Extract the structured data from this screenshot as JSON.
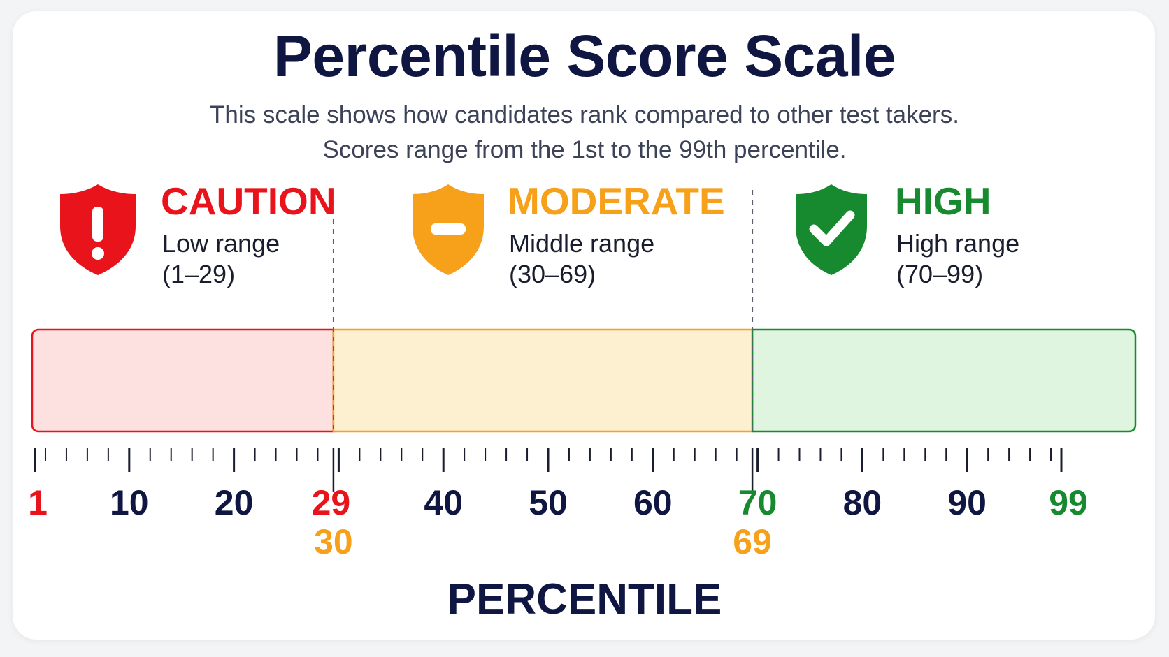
{
  "title": "Percentile Score Scale",
  "subtitle_lines": [
    "This scale shows how candidates rank compared to other test takers.",
    "Scores range from the 1st to the 99th percentile."
  ],
  "axis_title": "PERCENTILE",
  "scale": {
    "min": 1,
    "max": 99
  },
  "ranges": [
    {
      "key": "caution",
      "name": "CAUTION",
      "desc": "Low range",
      "range_text": "(1–29)",
      "start": 1,
      "end": 29,
      "color": "#e8131b",
      "fill": "#fde1e1",
      "icon": "shield-exclamation-icon"
    },
    {
      "key": "moderate",
      "name": "MODERATE",
      "desc": "Middle range",
      "range_text": "(30–69)",
      "start": 30,
      "end": 69,
      "color": "#f7a01a",
      "fill": "#fdf0d0",
      "icon": "shield-minus-icon"
    },
    {
      "key": "high",
      "name": "HIGH",
      "desc": "High range",
      "range_text": "(70–99)",
      "start": 70,
      "end": 99,
      "color": "#178a2f",
      "fill": "#e0f5df",
      "icon": "shield-check-icon"
    }
  ],
  "tick_labels": {
    "upper": [
      {
        "value": "1",
        "color": "#e8131b"
      },
      {
        "value": "10",
        "color": "#0f1642"
      },
      {
        "value": "20",
        "color": "#0f1642"
      },
      {
        "value": "29",
        "color": "#e8131b"
      },
      {
        "value": "40",
        "color": "#0f1642"
      },
      {
        "value": "50",
        "color": "#0f1642"
      },
      {
        "value": "60",
        "color": "#0f1642"
      },
      {
        "value": "70",
        "color": "#178a2f"
      },
      {
        "value": "80",
        "color": "#0f1642"
      },
      {
        "value": "90",
        "color": "#0f1642"
      },
      {
        "value": "99",
        "color": "#178a2f"
      }
    ],
    "lower": [
      {
        "value": "30",
        "color": "#f7a01a"
      },
      {
        "value": "69",
        "color": "#f7a01a"
      }
    ]
  },
  "boundaries": [
    29.5,
    69.5
  ]
}
